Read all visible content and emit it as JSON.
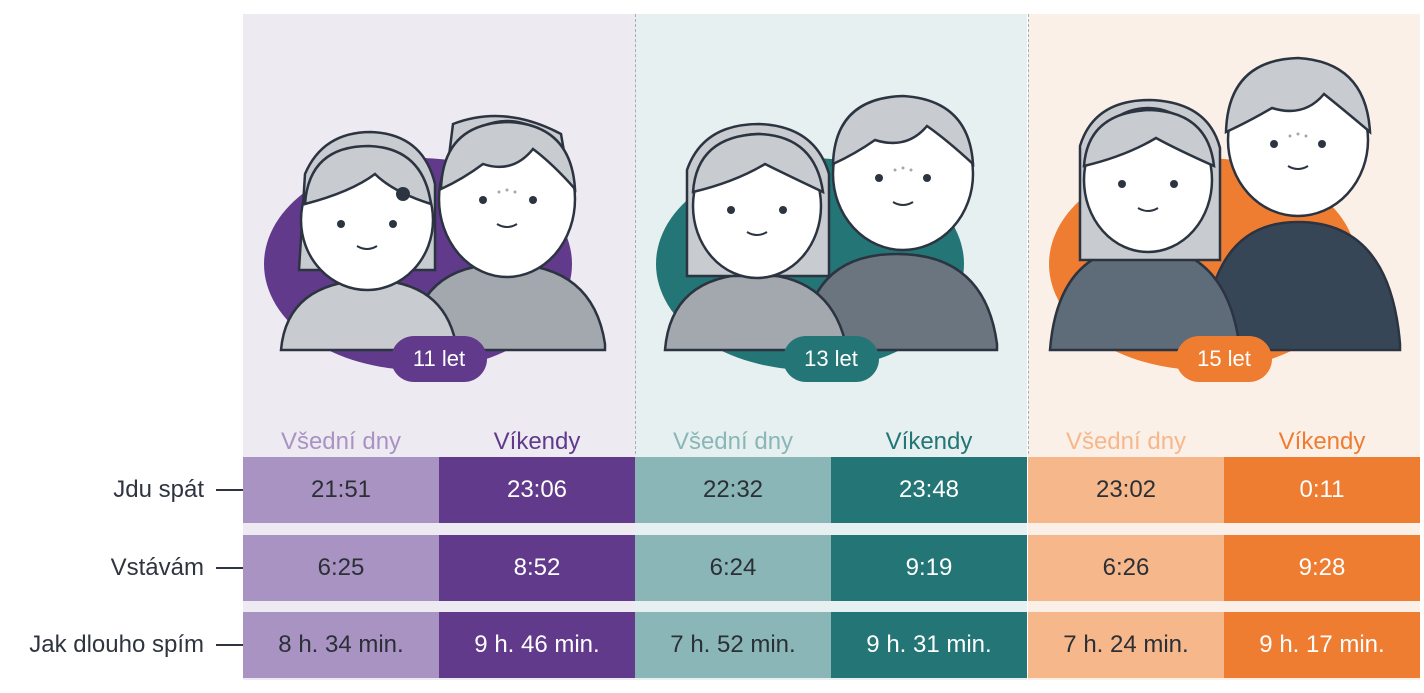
{
  "groups": [
    {
      "age_label": "11 let",
      "weekday_label": "Všední dny",
      "weekend_label": "Víkendy",
      "colors": {
        "light": "#a893c2",
        "dark": "#613a8b",
        "bg": "#eeeaf2"
      },
      "values": {
        "bedtime": [
          "21:51",
          "23:06"
        ],
        "wakeup": [
          "6:25",
          "8:52"
        ],
        "duration": [
          "8 h. 34 min.",
          "9 h. 46 min."
        ]
      }
    },
    {
      "age_label": "13 let",
      "weekday_label": "Všední dny",
      "weekend_label": "Víkendy",
      "colors": {
        "light": "#8ab6b7",
        "dark": "#237576",
        "bg": "#e6f0f0"
      },
      "values": {
        "bedtime": [
          "22:32",
          "23:48"
        ],
        "wakeup": [
          "6:24",
          "9:19"
        ],
        "duration": [
          "7 h. 52 min.",
          "9 h. 31 min."
        ]
      }
    },
    {
      "age_label": "15 let",
      "weekday_label": "Všední dny",
      "weekend_label": "Víkendy",
      "colors": {
        "light": "#f6b78a",
        "dark": "#ef7d31",
        "bg": "#fbf0e8"
      },
      "values": {
        "bedtime": [
          "23:02",
          "0:11"
        ],
        "wakeup": [
          "6:26",
          "9:28"
        ],
        "duration": [
          "7 h. 24 min.",
          "9 h. 17 min."
        ]
      }
    }
  ],
  "rows": [
    {
      "key": "bedtime",
      "label": "Jdu spát"
    },
    {
      "key": "wakeup",
      "label": "Vstávám"
    },
    {
      "key": "duration",
      "label": "Jak dlouho spím"
    }
  ],
  "icons": [
    "girl-avatar-icon",
    "boy-avatar-icon"
  ]
}
